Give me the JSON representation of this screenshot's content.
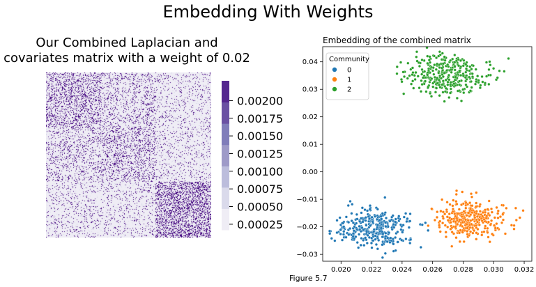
{
  "figure": {
    "suptitle": "Embedding With Weights",
    "caption": "Figure 5.7"
  },
  "heatmap": {
    "title_line1": "Our Combined Laplacian and",
    "title_line2": "covariates matrix with a weight of 0.02",
    "colormap_colors": [
      "#efedf5",
      "#dadaeb",
      "#bcbddc",
      "#9e9ac8",
      "#807dba",
      "#6a51a3",
      "#54278f"
    ],
    "background_color": "#efedf5",
    "dot_color": "#3f007d",
    "block_density": [
      [
        0.22,
        0.13,
        0.07
      ],
      [
        0.13,
        0.18,
        0.07
      ],
      [
        0.07,
        0.07,
        0.32
      ]
    ]
  },
  "colorbar": {
    "ticks": [
      "0.00025",
      "0.00050",
      "0.00075",
      "0.00100",
      "0.00125",
      "0.00150",
      "0.00175",
      "0.00200"
    ],
    "range": [
      0.00017,
      0.00228
    ],
    "tick_values": [
      0.00025,
      0.0005,
      0.00075,
      0.001,
      0.00125,
      0.0015,
      0.00175,
      0.002
    ]
  },
  "chart_data": {
    "type": "scatter",
    "title": "Embedding of the combined matrix",
    "xlabel": "",
    "ylabel": "",
    "xlim": [
      0.0188,
      0.0325
    ],
    "ylim": [
      -0.0325,
      0.0455
    ],
    "xticks": [
      0.02,
      0.022,
      0.024,
      0.026,
      0.028,
      0.03,
      0.032
    ],
    "xtick_labels": [
      "0.020",
      "0.022",
      "0.024",
      "0.026",
      "0.028",
      "0.030",
      "0.032"
    ],
    "yticks": [
      -0.03,
      -0.02,
      -0.01,
      0.0,
      0.01,
      0.02,
      0.03,
      0.04
    ],
    "ytick_labels": [
      "−0.03",
      "−0.02",
      "−0.01",
      "0.00",
      "0.01",
      "0.02",
      "0.03",
      "0.04"
    ],
    "grid": false,
    "legend": {
      "title": "Community",
      "placement": "top-left"
    },
    "series": [
      {
        "name": "0",
        "color": "#1f77b4",
        "center": [
          0.0221,
          -0.0205
        ],
        "spread": [
          0.0012,
          0.0035
        ],
        "count": 330
      },
      {
        "name": "1",
        "color": "#ff7f0e",
        "center": [
          0.0284,
          -0.0172
        ],
        "spread": [
          0.0011,
          0.0034
        ],
        "count": 330
      },
      {
        "name": "2",
        "color": "#2ca02c",
        "center": [
          0.027,
          0.035
        ],
        "spread": [
          0.0013,
          0.0036
        ],
        "count": 330
      }
    ]
  }
}
